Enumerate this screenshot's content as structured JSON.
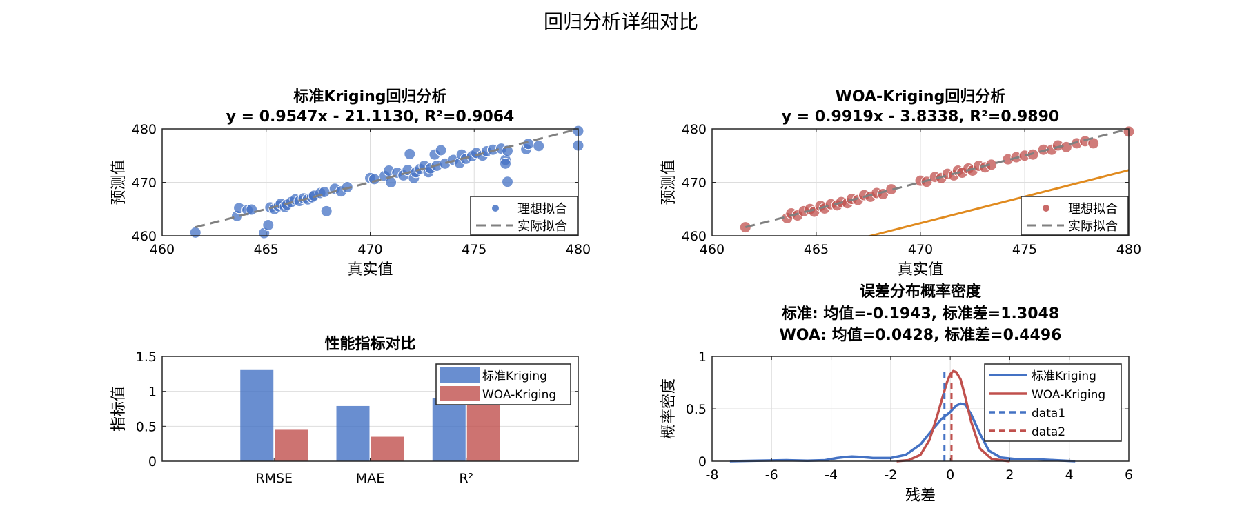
{
  "suptitle": "回归分析详细对比",
  "colors": {
    "blue": "#4472c4",
    "red": "#c0504d",
    "orange": "#e08a1e",
    "gray": "#808080",
    "grid": "#dddddd"
  },
  "chart_data": [
    {
      "id": "std",
      "type": "scatter",
      "title": "标准Kriging回归分析",
      "subtitle": "y = 0.9547x - 21.1130, R²=0.9064",
      "xlabel": "真实值",
      "ylabel": "预测值",
      "xlim": [
        460,
        480
      ],
      "ylim": [
        460,
        480
      ],
      "xticks": [
        460,
        465,
        470,
        475,
        480
      ],
      "yticks": [
        460,
        470,
        480
      ],
      "legend": [
        "理想拟合",
        "实际拟合"
      ],
      "fit": {
        "slope": 0.9547,
        "intercept": -21.113
      },
      "ideal": [
        [
          461.6,
          461.6
        ],
        [
          480,
          480
        ]
      ],
      "points": [
        [
          461.6,
          460.6
        ],
        [
          463.6,
          463.7
        ],
        [
          463.7,
          465.2
        ],
        [
          464.1,
          464.8
        ],
        [
          464.3,
          464.9
        ],
        [
          464.9,
          460.5
        ],
        [
          465.1,
          462
        ],
        [
          465.2,
          465.3
        ],
        [
          465.4,
          465
        ],
        [
          465.6,
          465.5
        ],
        [
          465.7,
          466
        ],
        [
          465.9,
          465.4
        ],
        [
          466,
          465.8
        ],
        [
          466.2,
          466.3
        ],
        [
          466.4,
          466.8
        ],
        [
          466.6,
          466.5
        ],
        [
          466.8,
          467
        ],
        [
          467,
          466.8
        ],
        [
          467.2,
          467.2
        ],
        [
          467.3,
          467.5
        ],
        [
          467.6,
          468
        ],
        [
          467.8,
          468.2
        ],
        [
          467.9,
          464.6
        ],
        [
          468.3,
          468.8
        ],
        [
          468.6,
          468.3
        ],
        [
          468.9,
          469.1
        ],
        [
          470,
          470.8
        ],
        [
          470.2,
          470.6
        ],
        [
          470.7,
          471.2
        ],
        [
          470.9,
          472.2
        ],
        [
          471,
          470
        ],
        [
          471.3,
          471.8
        ],
        [
          471.6,
          471.3
        ],
        [
          471.8,
          472.3
        ],
        [
          471.9,
          475.3
        ],
        [
          472.1,
          470.8
        ],
        [
          472.2,
          471.9
        ],
        [
          472.4,
          472.5
        ],
        [
          472.6,
          473.1
        ],
        [
          472.8,
          471.9
        ],
        [
          472.9,
          472.6
        ],
        [
          473.1,
          475.2
        ],
        [
          473.2,
          473.1
        ],
        [
          473.4,
          476
        ],
        [
          473.6,
          473.5
        ],
        [
          474,
          474.2
        ],
        [
          474.3,
          473.6
        ],
        [
          474.4,
          475.2
        ],
        [
          474.6,
          474.4
        ],
        [
          474.9,
          474.9
        ],
        [
          475.1,
          475.5
        ],
        [
          475.4,
          475
        ],
        [
          475.6,
          475.8
        ],
        [
          475.9,
          476.1
        ],
        [
          476.3,
          476.3
        ],
        [
          476.5,
          474.2
        ],
        [
          476.5,
          473.5
        ],
        [
          476.6,
          470.1
        ],
        [
          476.6,
          475.9
        ],
        [
          477.5,
          476.2
        ],
        [
          477.6,
          477.2
        ],
        [
          478.1,
          476.8
        ],
        [
          480,
          479.6
        ],
        [
          480,
          476.9
        ]
      ]
    },
    {
      "id": "woa",
      "type": "scatter",
      "title": "WOA-Kriging回归分析",
      "subtitle": "y = 0.9919x - 3.8338, R²=0.9890",
      "xlabel": "真实值",
      "ylabel": "预测值",
      "xlim": [
        460,
        480
      ],
      "ylim": [
        460,
        480
      ],
      "xticks": [
        460,
        465,
        470,
        475,
        480
      ],
      "yticks": [
        460,
        470,
        480
      ],
      "legend": [
        "理想拟合",
        "实际拟合"
      ],
      "fit": {
        "slope": 0.9919,
        "intercept": -3.8338
      },
      "ideal": [
        [
          461.6,
          461.6
        ],
        [
          480,
          480
        ]
      ],
      "points": [
        [
          461.6,
          461.6
        ],
        [
          463.6,
          463.3
        ],
        [
          463.8,
          464.2
        ],
        [
          464.1,
          463.8
        ],
        [
          464.4,
          464.6
        ],
        [
          464.7,
          465
        ],
        [
          464.9,
          464.5
        ],
        [
          465.2,
          465.6
        ],
        [
          465.4,
          465.1
        ],
        [
          465.7,
          465.9
        ],
        [
          466,
          465.7
        ],
        [
          466.2,
          466.3
        ],
        [
          466.5,
          466.1
        ],
        [
          466.7,
          466.9
        ],
        [
          467,
          466.7
        ],
        [
          467.3,
          467.6
        ],
        [
          467.6,
          467.3
        ],
        [
          467.9,
          468
        ],
        [
          468.2,
          467.8
        ],
        [
          468.6,
          468.7
        ],
        [
          470,
          470.3
        ],
        [
          470.3,
          470.1
        ],
        [
          470.7,
          471
        ],
        [
          471,
          470.8
        ],
        [
          471.3,
          471.6
        ],
        [
          471.6,
          471.3
        ],
        [
          471.8,
          472.2
        ],
        [
          472,
          471.8
        ],
        [
          472.3,
          472.6
        ],
        [
          472.5,
          472.2
        ],
        [
          472.8,
          473.1
        ],
        [
          473.1,
          472.8
        ],
        [
          473.4,
          473.3
        ],
        [
          474.2,
          474.3
        ],
        [
          474.6,
          474.7
        ],
        [
          475,
          475
        ],
        [
          475.4,
          475.2
        ],
        [
          475.9,
          476.1
        ],
        [
          476.3,
          476.1
        ],
        [
          476.6,
          476.9
        ],
        [
          477,
          476.6
        ],
        [
          477.5,
          477.3
        ],
        [
          477.9,
          477.7
        ],
        [
          478.3,
          477.3
        ],
        [
          480,
          479.5
        ]
      ]
    },
    {
      "id": "bar",
      "type": "bar",
      "title": "性能指标对比",
      "ylabel": "指标值",
      "categories": [
        "RMSE",
        "MAE",
        "R²"
      ],
      "series": [
        {
          "name": "标准Kriging",
          "values": [
            1.3048,
            0.79,
            0.9064
          ]
        },
        {
          "name": "WOA-Kriging",
          "values": [
            0.4496,
            0.35,
            0.989
          ]
        }
      ],
      "ylim": [
        0,
        1.5
      ],
      "yticks": [
        0,
        0.5,
        1,
        1.5
      ]
    },
    {
      "id": "pdf",
      "type": "line",
      "title": "误差分布概率密度",
      "subtitle": "标准: 均值=-0.1943, 标准差=1.3048",
      "subtitle2": "WOA: 均值=0.0428, 标准差=0.4496",
      "xlabel": "残差",
      "ylabel": "概率密度",
      "xlim": [
        -8,
        6
      ],
      "ylim": [
        0,
        1
      ],
      "xticks": [
        -8,
        -6,
        -4,
        -2,
        0,
        2,
        4,
        6
      ],
      "yticks": [
        0,
        0.5,
        1
      ],
      "series": [
        {
          "name": "标准Kriging",
          "x": [
            -7.4,
            -6.5,
            -5.5,
            -4.8,
            -4.2,
            -3.8,
            -3.5,
            -3.3,
            -3.0,
            -2.6,
            -2.0,
            -1.5,
            -1.0,
            -0.6,
            -0.3,
            0.0,
            0.2,
            0.35,
            0.5,
            0.7,
            1.0,
            1.3,
            1.7,
            2.2,
            2.8,
            3.5,
            4.2
          ],
          "y": [
            0,
            0.005,
            0.01,
            0.005,
            0.01,
            0.03,
            0.04,
            0.045,
            0.04,
            0.03,
            0.03,
            0.06,
            0.16,
            0.3,
            0.4,
            0.47,
            0.53,
            0.55,
            0.54,
            0.45,
            0.26,
            0.1,
            0.035,
            0.02,
            0.02,
            0.01,
            0
          ]
        },
        {
          "name": "WOA-Kriging",
          "x": [
            -1.8,
            -1.4,
            -1.0,
            -0.7,
            -0.45,
            -0.25,
            -0.1,
            0.0,
            0.1,
            0.2,
            0.35,
            0.5,
            0.7,
            1.0,
            1.4,
            2.0
          ],
          "y": [
            0,
            0.01,
            0.06,
            0.2,
            0.42,
            0.62,
            0.76,
            0.83,
            0.86,
            0.85,
            0.78,
            0.62,
            0.38,
            0.12,
            0.02,
            0
          ]
        }
      ],
      "mean_lines": [
        {
          "name": "data1",
          "x": -0.1943,
          "y": [
            0,
            0.85
          ]
        },
        {
          "name": "data2",
          "x": 0.0428,
          "y": [
            0,
            0.85
          ]
        }
      ]
    }
  ]
}
